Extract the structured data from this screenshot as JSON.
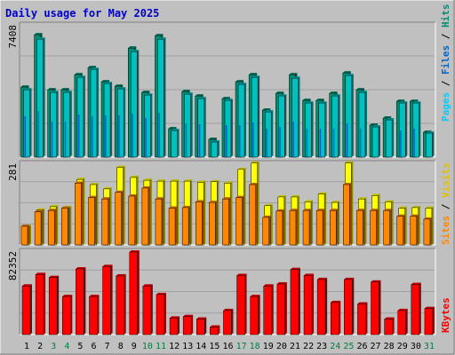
{
  "colors": {
    "background": "#c0c0c0",
    "panel_bg": "#c0c0c0",
    "title": "#0000cc",
    "hits": "#00c0c0",
    "files": "#0066cc",
    "pages": "#00ccff",
    "visits": "#ffff00",
    "sites": "#ff8800",
    "kbytes": "#ff0000",
    "weekend_label": "#008040",
    "day_label": "#000000",
    "grid": "#a0a0a0"
  },
  "chart_data": [
    {
      "type": "bar",
      "title": "Daily usage for May 2025",
      "ylabel_max": "7408",
      "ymax": 7408,
      "legend": [
        "Pages",
        "Files",
        "Hits"
      ],
      "categories": [
        "1",
        "2",
        "3",
        "4",
        "5",
        "6",
        "7",
        "8",
        "9",
        "10",
        "11",
        "12",
        "13",
        "14",
        "15",
        "16",
        "17",
        "18",
        "19",
        "20",
        "21",
        "22",
        "23",
        "24",
        "25",
        "26",
        "27",
        "28",
        "29",
        "30",
        "31"
      ],
      "weekend_days": [
        "3",
        "4",
        "10",
        "11",
        "17",
        "18",
        "24",
        "25",
        "31"
      ],
      "series": [
        {
          "name": "Hits",
          "values": [
            3950,
            6900,
            3800,
            3800,
            4650,
            5050,
            4250,
            4000,
            6150,
            3650,
            6850,
            1600,
            3700,
            3450,
            1000,
            3300,
            4250,
            4650,
            2650,
            3600,
            4650,
            3200,
            3200,
            3600,
            4750,
            3800,
            1800,
            2200,
            3150,
            3150,
            1400
          ]
        },
        {
          "name": "Files",
          "values": [
            3800,
            6650,
            3650,
            3650,
            4500,
            4950,
            4150,
            3850,
            5950,
            3500,
            6650,
            1500,
            3550,
            3300,
            850,
            3200,
            4100,
            4500,
            2550,
            3450,
            4450,
            3050,
            3050,
            3450,
            4600,
            3650,
            1700,
            2100,
            3050,
            3050,
            1350
          ]
        },
        {
          "name": "Pages",
          "values": [
            2300,
            2600,
            2000,
            2000,
            2400,
            2300,
            2350,
            2350,
            2450,
            2200,
            2500,
            0,
            1900,
            1850,
            0,
            1800,
            1800,
            1950,
            1600,
            1700,
            2000,
            1600,
            1600,
            1600,
            1900,
            1600,
            0,
            0,
            1500,
            1600,
            0
          ]
        }
      ]
    },
    {
      "type": "bar",
      "ylabel_max": "281",
      "ymax": 281,
      "legend": [
        "Sites",
        "Visits"
      ],
      "categories": [
        "1",
        "2",
        "3",
        "4",
        "5",
        "6",
        "7",
        "8",
        "9",
        "10",
        "11",
        "12",
        "13",
        "14",
        "15",
        "16",
        "17",
        "18",
        "19",
        "20",
        "21",
        "22",
        "23",
        "24",
        "25",
        "26",
        "27",
        "28",
        "29",
        "30",
        "31"
      ],
      "series": [
        {
          "name": "Visits",
          "values": [
            65,
            122,
            133,
            130,
            228,
            210,
            195,
            270,
            235,
            225,
            222,
            222,
            222,
            218,
            220,
            215,
            263,
            285,
            137,
            167,
            167,
            150,
            177,
            148,
            285,
            160,
            172,
            150,
            128,
            130,
            128
          ]
        },
        {
          "name": "Sites",
          "values": [
            65,
            115,
            120,
            128,
            215,
            165,
            160,
            183,
            170,
            198,
            160,
            128,
            130,
            150,
            148,
            160,
            165,
            210,
            96,
            118,
            120,
            120,
            120,
            120,
            210,
            120,
            120,
            120,
            100,
            100,
            90
          ]
        }
      ]
    },
    {
      "type": "bar",
      "ylabel_max": "82352",
      "ymax": 82352,
      "legend": [
        "KBytes"
      ],
      "categories": [
        "1",
        "2",
        "3",
        "4",
        "5",
        "6",
        "7",
        "8",
        "9",
        "10",
        "11",
        "12",
        "13",
        "14",
        "15",
        "16",
        "17",
        "18",
        "19",
        "20",
        "21",
        "22",
        "23",
        "24",
        "25",
        "26",
        "27",
        "28",
        "29",
        "30",
        "31"
      ],
      "series": [
        {
          "name": "KBytes",
          "values": [
            48500,
            60000,
            57000,
            38000,
            65500,
            38000,
            68000,
            58500,
            82352,
            48500,
            40000,
            16500,
            18000,
            15500,
            7500,
            24000,
            59000,
            38000,
            48500,
            50500,
            65000,
            59000,
            55000,
            32000,
            55000,
            30500,
            52500,
            15500,
            24000,
            50000,
            26000
          ]
        }
      ]
    }
  ]
}
